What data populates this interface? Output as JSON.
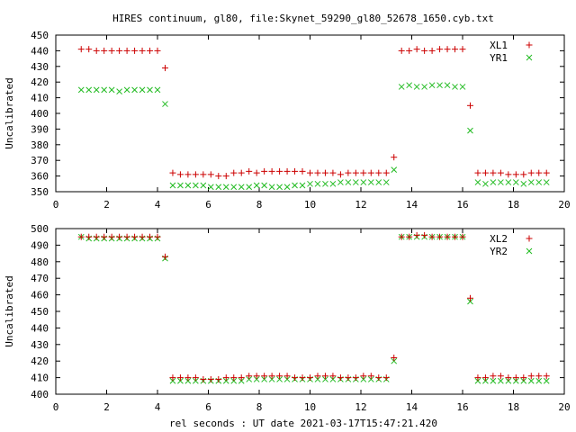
{
  "title": "HIRES continuum, gl80, file:Skynet_59290_gl80_52678_1650.cyb.txt",
  "xlabel": "rel seconds : UT date 2021-03-17T15:47:21.420",
  "colors": {
    "red": "#cc0000",
    "green": "#22bb22"
  },
  "chart_data": [
    {
      "type": "scatter",
      "ylabel": "Uncalibrated",
      "xlim": [
        0,
        20
      ],
      "ylim": [
        350,
        450
      ],
      "xticks": [
        "0",
        "2",
        "4",
        "6",
        "8",
        "10",
        "12",
        "14",
        "16",
        "18",
        "20"
      ],
      "yticks": [
        "350",
        "360",
        "370",
        "380",
        "390",
        "400",
        "410",
        "420",
        "430",
        "440",
        "450"
      ],
      "legend_position": "top-right",
      "x": [
        1.0,
        1.3,
        1.6,
        1.9,
        2.2,
        2.5,
        2.8,
        3.1,
        3.4,
        3.7,
        4.0,
        4.3,
        4.6,
        4.9,
        5.2,
        5.5,
        5.8,
        6.1,
        6.4,
        6.7,
        7.0,
        7.3,
        7.6,
        7.9,
        8.2,
        8.5,
        8.8,
        9.1,
        9.4,
        9.7,
        10.0,
        10.3,
        10.6,
        10.9,
        11.2,
        11.5,
        11.8,
        12.1,
        12.4,
        12.7,
        13.0,
        13.3,
        13.6,
        13.9,
        14.2,
        14.5,
        14.8,
        15.1,
        15.4,
        15.7,
        16.0,
        16.3,
        16.6,
        16.9,
        17.2,
        17.5,
        17.8,
        18.1,
        18.4,
        18.7,
        19.0,
        19.3
      ],
      "series": [
        {
          "name": "XL1",
          "marker": "plus",
          "color": "#cc0000",
          "values": [
            441,
            441,
            440,
            440,
            440,
            440,
            440,
            440,
            440,
            440,
            440,
            429,
            362,
            361,
            361,
            361,
            361,
            361,
            360,
            360,
            362,
            362,
            363,
            362,
            363,
            363,
            363,
            363,
            363,
            363,
            362,
            362,
            362,
            362,
            361,
            362,
            362,
            362,
            362,
            362,
            362,
            372,
            440,
            440,
            441,
            440,
            440,
            441,
            441,
            441,
            441,
            405,
            362,
            362,
            362,
            362,
            361,
            361,
            361,
            362,
            362,
            362
          ]
        },
        {
          "name": "YR1",
          "marker": "cross",
          "color": "#22bb22",
          "values": [
            415,
            415,
            415,
            415,
            415,
            414,
            415,
            415,
            415,
            415,
            415,
            406,
            354,
            354,
            354,
            354,
            354,
            353,
            353,
            353,
            353,
            353,
            353,
            354,
            354,
            353,
            353,
            353,
            354,
            354,
            355,
            355,
            355,
            355,
            356,
            356,
            356,
            356,
            356,
            356,
            356,
            364,
            417,
            418,
            417,
            417,
            418,
            418,
            418,
            417,
            417,
            389,
            356,
            355,
            356,
            356,
            356,
            356,
            355,
            356,
            356,
            356
          ]
        }
      ]
    },
    {
      "type": "scatter",
      "ylabel": "Uncalibrated",
      "xlim": [
        0,
        20
      ],
      "ylim": [
        400,
        500
      ],
      "xticks": [
        "0",
        "2",
        "4",
        "6",
        "8",
        "10",
        "12",
        "14",
        "16",
        "18",
        "20"
      ],
      "yticks": [
        "400",
        "410",
        "420",
        "430",
        "440",
        "450",
        "460",
        "470",
        "480",
        "490",
        "500"
      ],
      "legend_position": "top-right",
      "x": [
        1.0,
        1.3,
        1.6,
        1.9,
        2.2,
        2.5,
        2.8,
        3.1,
        3.4,
        3.7,
        4.0,
        4.3,
        4.6,
        4.9,
        5.2,
        5.5,
        5.8,
        6.1,
        6.4,
        6.7,
        7.0,
        7.3,
        7.6,
        7.9,
        8.2,
        8.5,
        8.8,
        9.1,
        9.4,
        9.7,
        10.0,
        10.3,
        10.6,
        10.9,
        11.2,
        11.5,
        11.8,
        12.1,
        12.4,
        12.7,
        13.0,
        13.3,
        13.6,
        13.9,
        14.2,
        14.5,
        14.8,
        15.1,
        15.4,
        15.7,
        16.0,
        16.3,
        16.6,
        16.9,
        17.2,
        17.5,
        17.8,
        18.1,
        18.4,
        18.7,
        19.0,
        19.3
      ],
      "series": [
        {
          "name": "XL2",
          "marker": "plus",
          "color": "#cc0000",
          "values": [
            495,
            495,
            495,
            495,
            495,
            495,
            495,
            495,
            495,
            495,
            495,
            483,
            410,
            410,
            410,
            410,
            409,
            409,
            409,
            410,
            410,
            410,
            411,
            411,
            411,
            411,
            411,
            411,
            410,
            410,
            410,
            411,
            411,
            411,
            410,
            410,
            410,
            411,
            411,
            410,
            410,
            422,
            495,
            495,
            496,
            496,
            495,
            495,
            495,
            495,
            495,
            458,
            410,
            410,
            411,
            411,
            410,
            410,
            410,
            411,
            411,
            411
          ]
        },
        {
          "name": "YR2",
          "marker": "cross",
          "color": "#22bb22",
          "values": [
            495,
            494,
            494,
            494,
            494,
            494,
            494,
            494,
            494,
            494,
            494,
            482,
            408,
            408,
            408,
            408,
            408,
            408,
            408,
            408,
            408,
            408,
            409,
            409,
            409,
            409,
            409,
            409,
            409,
            409,
            409,
            409,
            409,
            409,
            409,
            409,
            409,
            409,
            409,
            409,
            409,
            420,
            495,
            495,
            495,
            495,
            495,
            495,
            495,
            495,
            495,
            456,
            408,
            408,
            408,
            408,
            408,
            408,
            408,
            408,
            408,
            408
          ]
        }
      ]
    }
  ]
}
